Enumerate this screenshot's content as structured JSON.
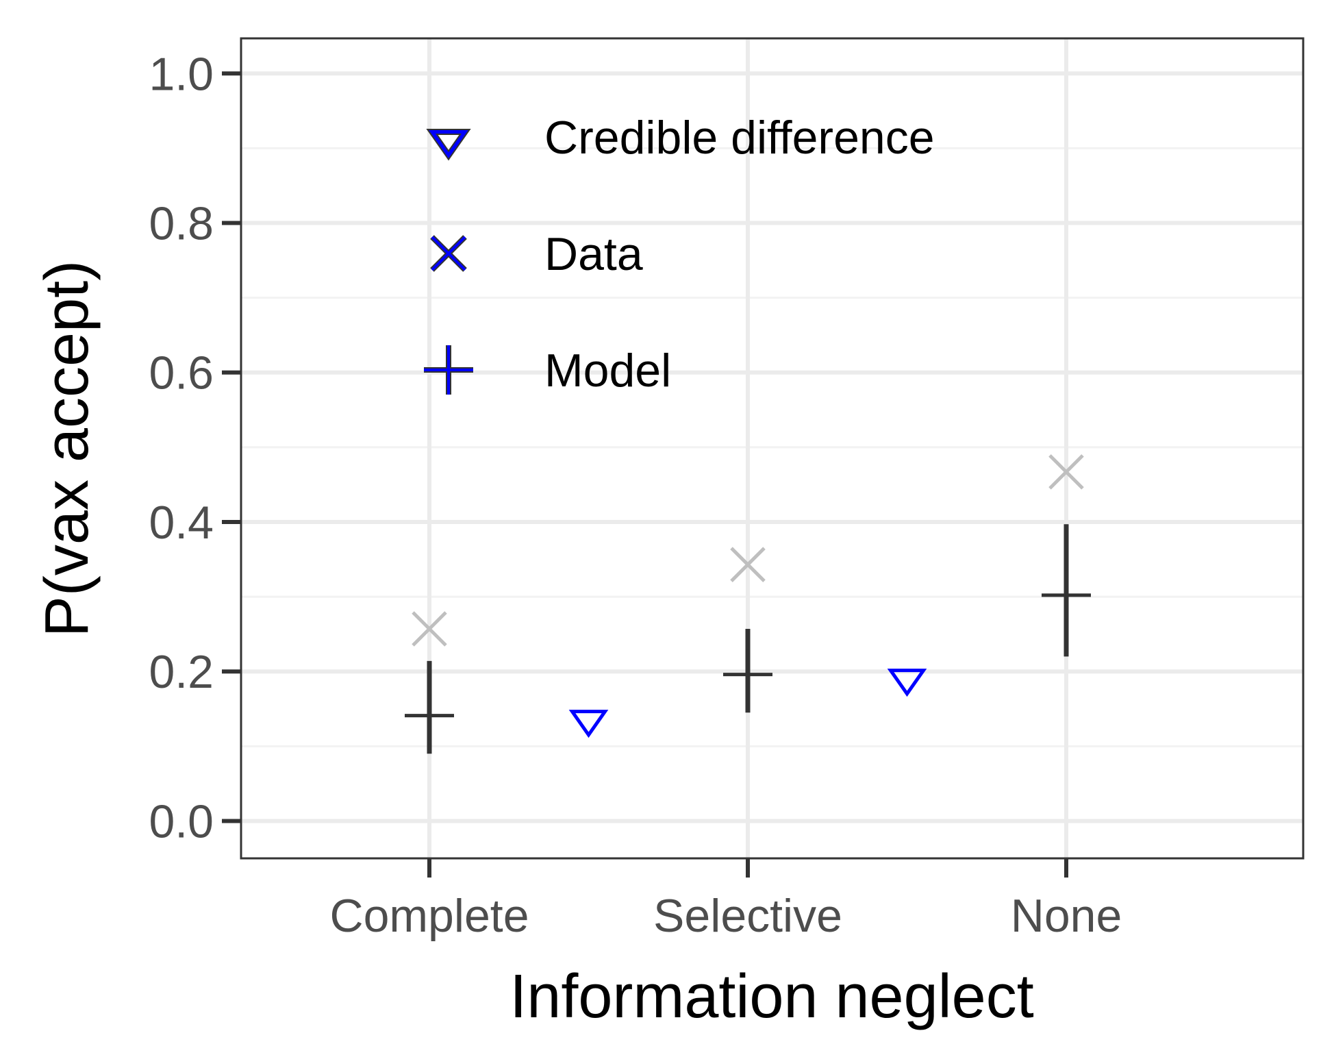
{
  "chart_data": {
    "type": "scatter",
    "title": "",
    "xlabel": "Information neglect",
    "ylabel": "P(vax accept)",
    "categories": [
      "Complete",
      "Selective",
      "None"
    ],
    "ylim": [
      -0.05,
      1.047
    ],
    "yticks": [
      0.0,
      0.2,
      0.4,
      0.6,
      0.8,
      1.0
    ],
    "ytick_labels": [
      "0.0",
      "0.2",
      "0.4",
      "0.6",
      "0.8",
      "1.0"
    ],
    "grid": true,
    "legend_position": "top-left",
    "legend": [
      {
        "label": "Credible difference",
        "marker": "triangle-down"
      },
      {
        "label": "Data",
        "marker": "x"
      },
      {
        "label": "Model",
        "marker": "plus"
      }
    ],
    "series": [
      {
        "name": "Data",
        "marker": "x",
        "color": "#bfbfbf",
        "points": [
          {
            "x": "Complete",
            "y": 0.257
          },
          {
            "x": "Selective",
            "y": 0.343
          },
          {
            "x": "None",
            "y": 0.467
          }
        ]
      },
      {
        "name": "Model",
        "marker": "plus",
        "color": "#333333",
        "points": [
          {
            "x": "Complete",
            "y": 0.141,
            "ymin": 0.09,
            "ymax": 0.214
          },
          {
            "x": "Selective",
            "y": 0.196,
            "ymin": 0.145,
            "ymax": 0.257
          },
          {
            "x": "None",
            "y": 0.302,
            "ymin": 0.22,
            "ymax": 0.397
          }
        ]
      },
      {
        "name": "Credible difference",
        "marker": "triangle-down",
        "color": "#0000ff",
        "points": [
          {
            "x": 1.5,
            "y": 0.135
          },
          {
            "x": 2.5,
            "y": 0.19
          }
        ]
      }
    ],
    "colors": {
      "panel_background": "#ebebeb",
      "grid_major": "#ebebeb",
      "grid_minor": "#f2f2f2",
      "data_marker": "#bfbfbf",
      "model_marker": "#333333",
      "diff_marker": "#0000ff",
      "border": "#333333"
    }
  }
}
